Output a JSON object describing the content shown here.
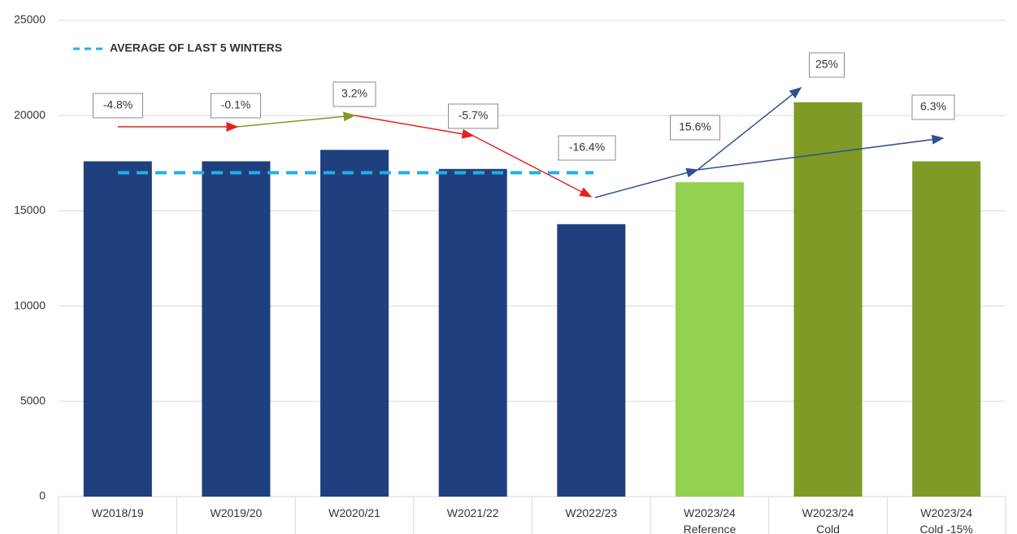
{
  "chart_data": {
    "type": "bar",
    "categories": [
      "W2018/19",
      "W2019/20",
      "W2020/21",
      "W2021/22",
      "W2022/23",
      "W2023/24\nReference",
      "W2023/24\nCold",
      "W2023/24\nCold -15%"
    ],
    "values": [
      17600,
      17600,
      18200,
      17200,
      14300,
      16500,
      20700,
      17600
    ],
    "colors": [
      "#1f3f7f",
      "#1f3f7f",
      "#1f3f7f",
      "#1f3f7f",
      "#1f3f7f",
      "#92d050",
      "#7f9a26",
      "#7f9a26"
    ],
    "ylim": [
      0,
      25000
    ],
    "yticks": [
      0,
      5000,
      10000,
      15000,
      20000,
      25000
    ],
    "grid": true,
    "reference_line": {
      "name": "AVERAGE OF LAST 5 WINTERS",
      "value": 17000,
      "color": "#1fb0e8"
    },
    "annotations": [
      {
        "text": "-4.8%",
        "color": "#e8201c"
      },
      {
        "text": "-0.1%",
        "color": "#e8201c"
      },
      {
        "text": "3.2%",
        "color": "#6b7f1e"
      },
      {
        "text": "-5.7%",
        "color": "#e8201c"
      },
      {
        "text": "-16.4%",
        "color": "#e8201c"
      },
      {
        "text": "15.6%",
        "color": "#6b7f1e"
      },
      {
        "text": "25%",
        "color": "#6b7f1e"
      },
      {
        "text": "6.3%",
        "color": "#6b7f1e"
      }
    ]
  }
}
